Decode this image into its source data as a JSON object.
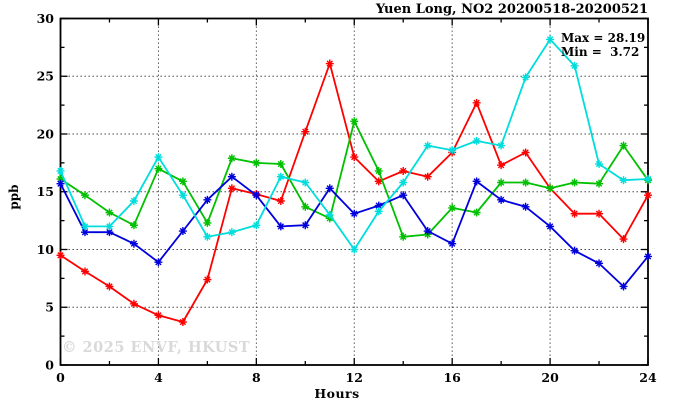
{
  "title": "Yuen Long, NO2 20200518-20200521",
  "watermark": "© 2025 ENVF, HKUST",
  "legend_box": {
    "max_label": "Max = 28.19",
    "min_label": "Min =  3.72"
  },
  "axes": {
    "xlabel": "Hours",
    "ylabel": "ppb",
    "xlim": [
      0,
      24
    ],
    "ylim": [
      0,
      30
    ],
    "x_major_ticks": [
      0,
      4,
      8,
      12,
      16,
      20,
      24
    ],
    "x_minor_step": 2,
    "y_major_ticks": [
      0,
      5,
      10,
      15,
      20,
      25,
      30
    ],
    "y_minor_step": 2.5,
    "grid": "dotted lines at interior major ticks",
    "grid_color": "#3a3a3a",
    "axis_color": "#000000"
  },
  "chart_data": {
    "type": "line",
    "title": "Yuen Long, NO2 20200518-20200521",
    "xlabel": "Hours",
    "ylabel": "ppb",
    "xlim": [
      0,
      24
    ],
    "ylim": [
      0,
      30
    ],
    "marker": "asterisk",
    "max": 28.19,
    "min": 3.72,
    "x": [
      0,
      1,
      2,
      3,
      4,
      5,
      6,
      7,
      8,
      9,
      10,
      11,
      12,
      13,
      14,
      15,
      16,
      17,
      18,
      19,
      20,
      21,
      22,
      23,
      24
    ],
    "series": [
      {
        "name": "series-red",
        "color": "#ff0000",
        "values": [
          9.5,
          8.1,
          6.8,
          5.3,
          4.3,
          3.72,
          7.4,
          15.3,
          14.8,
          14.2,
          20.2,
          26.1,
          18.0,
          15.9,
          16.8,
          16.3,
          18.4,
          22.7,
          17.3,
          18.4,
          15.3,
          13.1,
          13.1,
          10.9,
          14.7
        ]
      },
      {
        "name": "series-green",
        "color": "#00c000",
        "values": [
          16.1,
          14.7,
          13.2,
          12.1,
          17.0,
          15.9,
          12.3,
          17.9,
          17.5,
          17.4,
          13.7,
          12.7,
          21.1,
          16.8,
          11.1,
          11.3,
          13.6,
          13.2,
          15.8,
          15.8,
          15.3,
          15.8,
          15.7,
          19.0,
          16.0
        ]
      },
      {
        "name": "series-blue",
        "color": "#0000dd",
        "values": [
          15.7,
          11.5,
          11.5,
          10.5,
          8.9,
          11.6,
          14.3,
          16.3,
          14.7,
          12.0,
          12.1,
          15.3,
          13.1,
          13.8,
          14.7,
          11.6,
          10.5,
          15.9,
          14.3,
          13.7,
          12.0,
          9.9,
          8.8,
          6.8,
          9.4
        ]
      },
      {
        "name": "series-cyan",
        "color": "#00dddd",
        "values": [
          16.8,
          12.0,
          12.0,
          14.2,
          18.0,
          14.7,
          11.1,
          11.5,
          12.1,
          16.3,
          15.8,
          13.0,
          10.0,
          13.3,
          15.8,
          19.0,
          18.6,
          19.4,
          19.0,
          24.9,
          28.19,
          25.9,
          17.4,
          16.0,
          16.1
        ]
      }
    ]
  }
}
